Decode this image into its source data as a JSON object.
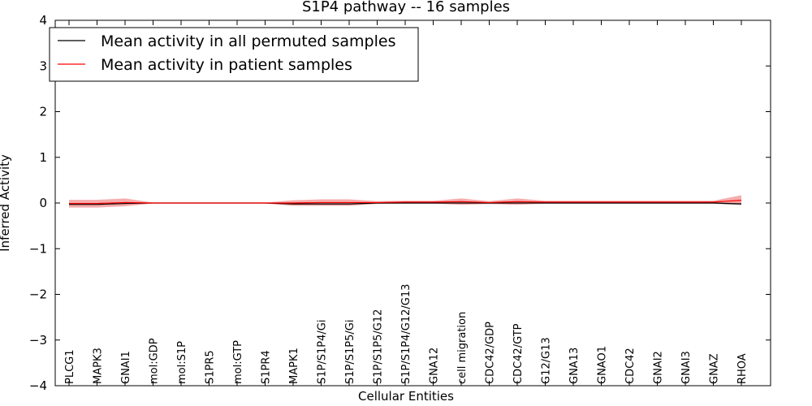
{
  "chart_data": {
    "type": "line",
    "title": "S1P4 pathway -- 16 samples",
    "xlabel": "Cellular Entities",
    "ylabel": "Inferred Activity",
    "ylim": [
      -4,
      4
    ],
    "yticks": [
      4,
      3,
      2,
      1,
      0,
      -1,
      -2,
      -3,
      -4
    ],
    "ytick_labels": [
      "4",
      "3",
      "2",
      "1",
      "0",
      "−1",
      "−2",
      "−3",
      "−4"
    ],
    "categories": [
      "PLCG1",
      "MAPK3",
      "GNAI1",
      "mol:GDP",
      "mol:S1P",
      "S1PR5",
      "mol:GTP",
      "S1PR4",
      "MAPK1",
      "S1P/S1P4/Gi",
      "S1P/S1P5/Gi",
      "S1P/S1P5/G12",
      "S1P/S1P4/G12/G13",
      "GNA12",
      "cell migration",
      "CDC42/GDP",
      "CDC42/GTP",
      "G12/G13",
      "GNA13",
      "GNAO1",
      "CDC42",
      "GNAI2",
      "GNAI3",
      "GNAZ",
      "RHOA"
    ],
    "legend_position": "top-left",
    "series": [
      {
        "name": "Mean activity in all permuted samples",
        "color": "#000000",
        "band_color": "#aaaaaa",
        "values": [
          -0.03,
          -0.03,
          -0.01,
          0.0,
          0.0,
          0.0,
          0.0,
          0.0,
          -0.02,
          -0.02,
          -0.02,
          0.0,
          0.0,
          0.0,
          0.0,
          0.0,
          0.0,
          0.0,
          0.0,
          0.0,
          0.0,
          0.0,
          0.0,
          0.0,
          -0.02
        ],
        "lower": [
          -0.06,
          -0.06,
          -0.04,
          -0.01,
          -0.01,
          -0.01,
          -0.01,
          -0.01,
          -0.05,
          -0.05,
          -0.05,
          -0.02,
          -0.02,
          -0.02,
          -0.02,
          -0.02,
          -0.02,
          -0.02,
          -0.02,
          -0.02,
          -0.02,
          -0.02,
          -0.02,
          -0.02,
          -0.05
        ],
        "upper": [
          0.0,
          0.0,
          0.02,
          0.01,
          0.01,
          0.01,
          0.01,
          0.01,
          0.01,
          0.01,
          0.01,
          0.02,
          0.02,
          0.02,
          0.02,
          0.02,
          0.02,
          0.02,
          0.02,
          0.02,
          0.02,
          0.02,
          0.02,
          0.02,
          0.01
        ]
      },
      {
        "name": "Mean activity in patient samples",
        "color": "#ff0000",
        "band_color": "#f08080",
        "values": [
          -0.01,
          -0.01,
          0.01,
          0.0,
          0.0,
          0.0,
          0.0,
          0.0,
          0.0,
          0.01,
          0.01,
          0.01,
          0.02,
          0.02,
          0.03,
          0.01,
          0.03,
          0.02,
          0.02,
          0.02,
          0.02,
          0.02,
          0.02,
          0.02,
          0.06
        ],
        "lower": [
          -0.1,
          -0.1,
          -0.07,
          -0.01,
          -0.01,
          -0.01,
          -0.01,
          -0.01,
          -0.06,
          -0.06,
          -0.06,
          -0.02,
          -0.01,
          -0.01,
          -0.04,
          -0.02,
          -0.04,
          -0.01,
          -0.01,
          -0.01,
          -0.01,
          -0.01,
          -0.01,
          -0.01,
          -0.04
        ],
        "upper": [
          0.07,
          0.07,
          0.1,
          0.01,
          0.01,
          0.01,
          0.01,
          0.01,
          0.06,
          0.08,
          0.08,
          0.04,
          0.05,
          0.05,
          0.1,
          0.04,
          0.1,
          0.05,
          0.05,
          0.05,
          0.05,
          0.05,
          0.05,
          0.05,
          0.17
        ]
      }
    ]
  }
}
